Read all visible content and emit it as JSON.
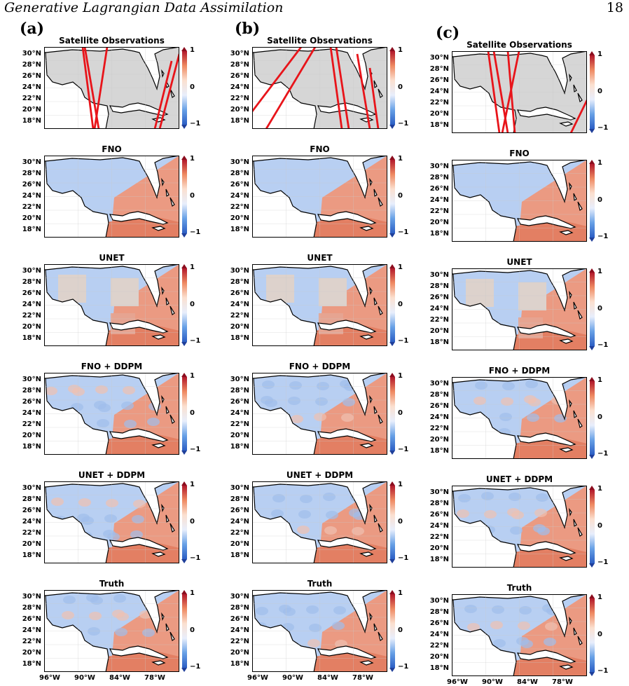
{
  "header": {
    "title": "Generative Lagrangian Data Assimilation",
    "page_number": "18"
  },
  "columns": [
    {
      "label": "(a)"
    },
    {
      "label": "(b)"
    },
    {
      "label": "(c)"
    }
  ],
  "panel_titles": [
    "Satellite Observations",
    "FNO",
    "UNET",
    "FNO + DDPM",
    "UNET + DDPM",
    "Truth"
  ],
  "lat_ticks": [
    "30°N",
    "28°N",
    "26°N",
    "24°N",
    "22°N",
    "20°N",
    "18°N"
  ],
  "lon_ticks": [
    "96°W",
    "90°W",
    "84°W",
    "78°W"
  ],
  "colorbar": {
    "max": "1",
    "mid": "0",
    "min": "−1",
    "colors": [
      "#b2182b",
      "#fbe0d0",
      "#2c5ec4"
    ]
  },
  "colors": {
    "land": "#ffffff",
    "obs_background": "#d6d6d6",
    "track": "#e8141a",
    "warm": "#e58a72",
    "cool": "#aac4ef"
  }
}
